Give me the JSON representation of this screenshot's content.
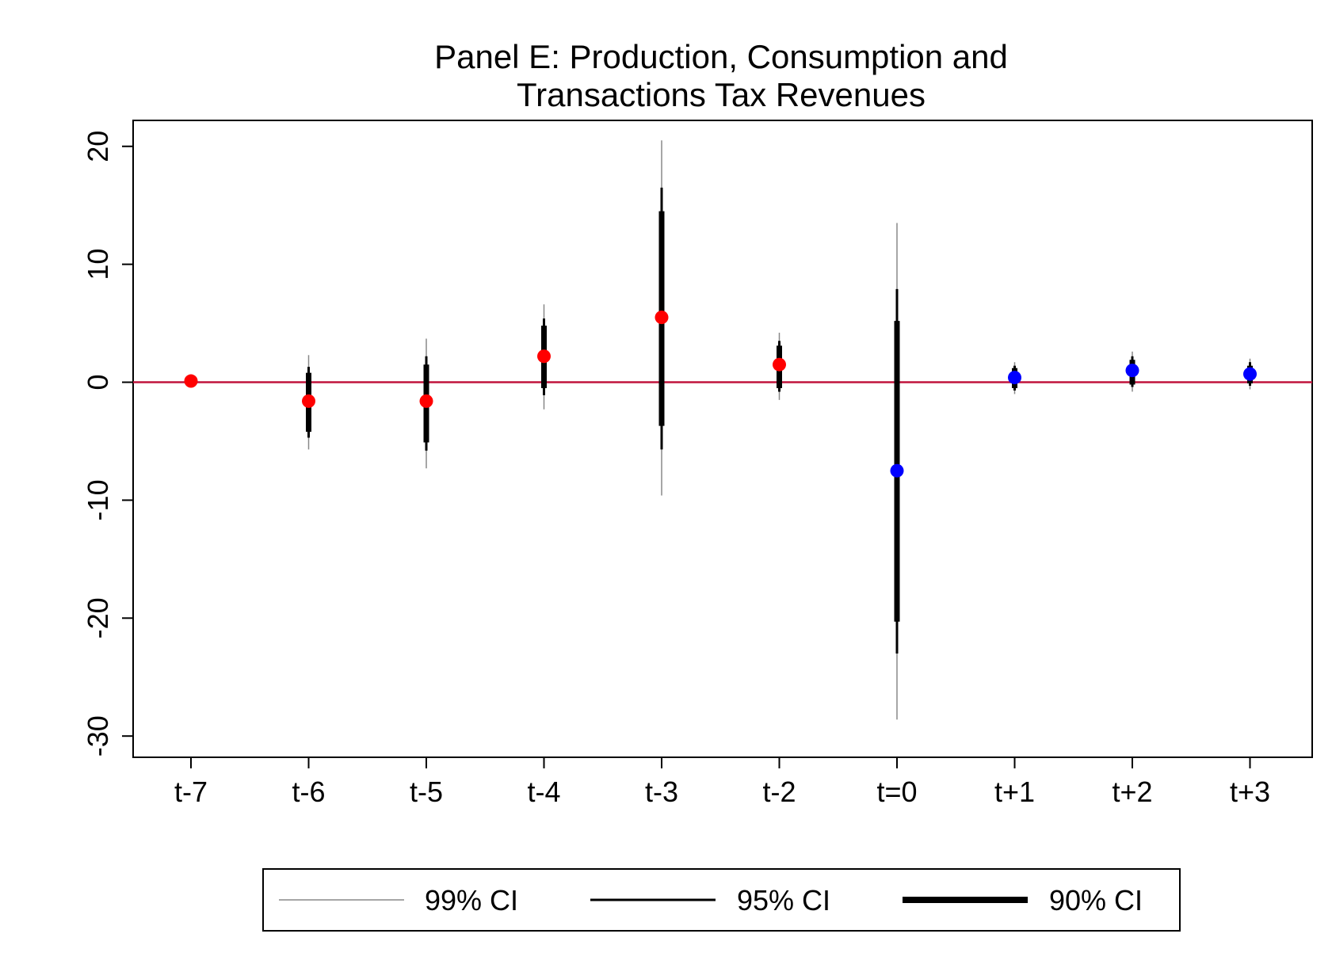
{
  "chart_data": {
    "type": "scatter",
    "title_lines": [
      "Panel E: Production, Consumption and",
      "Transactions Tax Revenues"
    ],
    "xlabel": "",
    "ylabel": "",
    "categories": [
      "t-7",
      "t-6",
      "t-5",
      "t-4",
      "t-3",
      "t-2",
      "t=0",
      "t+1",
      "t+2",
      "t+3"
    ],
    "estimates": [
      0.1,
      -1.6,
      -1.6,
      2.2,
      5.5,
      1.5,
      -7.5,
      0.4,
      1.0,
      0.7
    ],
    "ci99": [
      [
        0.1,
        0.1
      ],
      [
        -5.7,
        2.3
      ],
      [
        -7.3,
        3.7
      ],
      [
        -2.3,
        6.6
      ],
      [
        -9.6,
        20.5
      ],
      [
        -1.5,
        4.2
      ],
      [
        -28.6,
        13.5
      ],
      [
        -1.0,
        1.7
      ],
      [
        -0.8,
        2.6
      ],
      [
        -0.6,
        2.0
      ]
    ],
    "ci95": [
      [
        0.1,
        0.1
      ],
      [
        -4.7,
        1.3
      ],
      [
        -5.8,
        2.2
      ],
      [
        -1.1,
        5.4
      ],
      [
        -5.7,
        16.5
      ],
      [
        -0.8,
        3.5
      ],
      [
        -23.0,
        7.9
      ],
      [
        -0.7,
        1.4
      ],
      [
        -0.4,
        2.2
      ],
      [
        -0.3,
        1.7
      ]
    ],
    "ci90": [
      [
        0.1,
        0.1
      ],
      [
        -4.2,
        0.8
      ],
      [
        -5.1,
        1.5
      ],
      [
        -0.5,
        4.8
      ],
      [
        -3.7,
        14.5
      ],
      [
        -0.5,
        3.1
      ],
      [
        -20.3,
        5.2
      ],
      [
        -0.5,
        1.2
      ],
      [
        -0.2,
        1.9
      ],
      [
        -0.1,
        1.4
      ]
    ],
    "point_colors": [
      "#ff0000",
      "#ff0000",
      "#ff0000",
      "#ff0000",
      "#ff0000",
      "#ff0000",
      "#0000ff",
      "#0000ff",
      "#0000ff",
      "#0000ff"
    ],
    "ylim": [
      -31.8,
      22.2
    ],
    "yticks": [
      20,
      10,
      0,
      -10,
      -20,
      -30
    ],
    "reference_line": {
      "y": 0,
      "color": "#c0143c"
    },
    "grid": false,
    "legend": {
      "placement": "bottom",
      "entries": [
        {
          "label": "99% CI",
          "color": "#888888",
          "weight": "thin"
        },
        {
          "label": "95% CI",
          "color": "#000000",
          "weight": "medium"
        },
        {
          "label": "90% CI",
          "color": "#000000",
          "weight": "thick"
        }
      ]
    }
  }
}
